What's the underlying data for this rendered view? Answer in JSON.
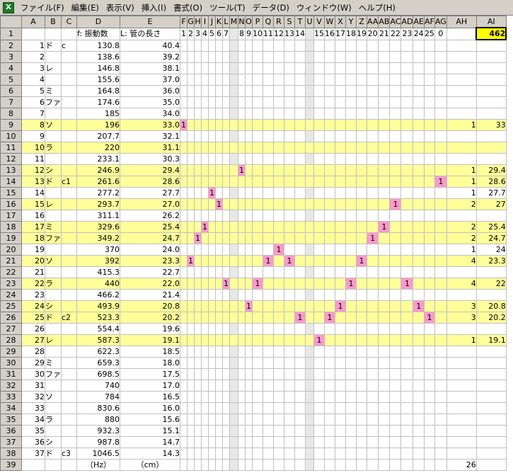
{
  "app": {
    "icon": "excel-icon"
  },
  "menu": [
    "ファイル(F)",
    "編集(E)",
    "表示(V)",
    "挿入(I)",
    "書式(O)",
    "ツール(T)",
    "データ(D)",
    "ウィンドウ(W)",
    "ヘルプ(H)"
  ],
  "colors": {
    "highlight": "#ffff99",
    "marker": "#ff99cc",
    "total": "#ffff00"
  },
  "sheet": {
    "columns": [
      "A",
      "B",
      "C",
      "D",
      "E",
      "F",
      "G",
      "H",
      "I",
      "J",
      "K",
      "L",
      "M",
      "N",
      "O",
      "P",
      "Q",
      "R",
      "S",
      "T",
      "U",
      "V",
      "W",
      "X",
      "Y",
      "Z",
      "AA",
      "AB",
      "AC",
      "AD",
      "AE",
      "AF",
      "AG",
      "AH",
      "AI"
    ],
    "header_row": {
      "D": "f: 振動数",
      "E": "L: 管の長さ",
      "nums": {
        "F": "1",
        "G": "2",
        "H": "3",
        "I": "4",
        "J": "5",
        "K": "6",
        "L": "7",
        "N": "8",
        "O": "9",
        "P": "10",
        "Q": "11",
        "R": "12",
        "S": "13",
        "T": "14",
        "V": "15",
        "W": "16",
        "X": "17",
        "Y": "18",
        "Z": "19",
        "AA": "20",
        "AB": "21",
        "AC": "22",
        "AD": "23",
        "AE": "24",
        "AF": "25",
        "AG": "0"
      },
      "AI": "462"
    },
    "rows": [
      {
        "n": "2",
        "A": "1",
        "B": "ド",
        "C": "c",
        "D": "130.8",
        "E": "40.4"
      },
      {
        "n": "3",
        "A": "2",
        "B": "",
        "C": "",
        "D": "138.6",
        "E": "39.2"
      },
      {
        "n": "4",
        "A": "3",
        "B": "レ",
        "C": "",
        "D": "146.8",
        "E": "38.1"
      },
      {
        "n": "5",
        "A": "4",
        "B": "",
        "C": "",
        "D": "155.6",
        "E": "37.0"
      },
      {
        "n": "6",
        "A": "5",
        "B": "ミ",
        "C": "",
        "D": "164.8",
        "E": "36.0"
      },
      {
        "n": "7",
        "A": "6",
        "B": "ファ",
        "C": "",
        "D": "174.6",
        "E": "35.0"
      },
      {
        "n": "8",
        "A": "7",
        "B": "",
        "C": "",
        "D": "185",
        "E": "34.0"
      },
      {
        "n": "9",
        "A": "8",
        "B": "ソ",
        "C": "",
        "D": "196",
        "E": "33.0",
        "hl": true,
        "marks": [
          "F"
        ],
        "AH": "1",
        "AI": "33"
      },
      {
        "n": "10",
        "A": "9",
        "B": "",
        "C": "",
        "D": "207.7",
        "E": "32.1"
      },
      {
        "n": "11",
        "A": "10",
        "B": "ラ",
        "C": "",
        "D": "220",
        "E": "31.1",
        "hl": true
      },
      {
        "n": "12",
        "A": "11",
        "B": "",
        "C": "",
        "D": "233.1",
        "E": "30.3"
      },
      {
        "n": "13",
        "A": "12",
        "B": "シ",
        "C": "",
        "D": "246.9",
        "E": "29.4",
        "hl": true,
        "marks": [
          "N"
        ],
        "AH": "1",
        "AI": "29.4"
      },
      {
        "n": "14",
        "A": "13",
        "B": "ド",
        "C": "c1",
        "D": "261.6",
        "E": "28.6",
        "hl": true,
        "marks": [
          "AG"
        ],
        "AH": "1",
        "AI": "28.6"
      },
      {
        "n": "15",
        "A": "14",
        "B": "",
        "C": "",
        "D": "277.2",
        "E": "27.7",
        "marks": [
          "J"
        ],
        "AH": "1",
        "AI": "27.7"
      },
      {
        "n": "16",
        "A": "15",
        "B": "レ",
        "C": "",
        "D": "293.7",
        "E": "27.0",
        "hl": true,
        "marks": [
          "K",
          "AC"
        ],
        "AH": "2",
        "AI": "27"
      },
      {
        "n": "17",
        "A": "16",
        "B": "",
        "C": "",
        "D": "311.1",
        "E": "26.2"
      },
      {
        "n": "18",
        "A": "17",
        "B": "ミ",
        "C": "",
        "D": "329.6",
        "E": "25.4",
        "hl": true,
        "marks": [
          "I",
          "AB"
        ],
        "AH": "2",
        "AI": "25.4"
      },
      {
        "n": "19",
        "A": "18",
        "B": "ファ",
        "C": "",
        "D": "349.2",
        "E": "24.7",
        "hl": true,
        "marks": [
          "H",
          "AA"
        ],
        "AH": "2",
        "AI": "24.7"
      },
      {
        "n": "20",
        "A": "19",
        "B": "",
        "C": "",
        "D": "370",
        "E": "24.0",
        "marks": [
          "R"
        ],
        "AH": "1",
        "AI": "24"
      },
      {
        "n": "21",
        "A": "20",
        "B": "ソ",
        "C": "",
        "D": "392",
        "E": "23.3",
        "hl": true,
        "marks": [
          "G",
          "Q",
          "S",
          "Z"
        ],
        "AH": "4",
        "AI": "23.3"
      },
      {
        "n": "22",
        "A": "21",
        "B": "",
        "C": "",
        "D": "415.3",
        "E": "22.7"
      },
      {
        "n": "23",
        "A": "22",
        "B": "ラ",
        "C": "",
        "D": "440",
        "E": "22.0",
        "hl": true,
        "marks": [
          "L",
          "P",
          "Y",
          "AD"
        ],
        "AH": "4",
        "AI": "22"
      },
      {
        "n": "24",
        "A": "23",
        "B": "",
        "C": "",
        "D": "466.2",
        "E": "21.4"
      },
      {
        "n": "25",
        "A": "24",
        "B": "シ",
        "C": "",
        "D": "493.9",
        "E": "20.8",
        "hl": true,
        "marks": [
          "O",
          "X",
          "AE"
        ],
        "AH": "3",
        "AI": "20.8"
      },
      {
        "n": "26",
        "A": "25",
        "B": "ド",
        "C": "c2",
        "D": "523.3",
        "E": "20.2",
        "hl": true,
        "marks": [
          "T",
          "W",
          "AF"
        ],
        "AH": "3",
        "AI": "20.2"
      },
      {
        "n": "27",
        "A": "26",
        "B": "",
        "C": "",
        "D": "554.4",
        "E": "19.6"
      },
      {
        "n": "28",
        "A": "27",
        "B": "レ",
        "C": "",
        "D": "587.3",
        "E": "19.1",
        "hl": true,
        "marks": [
          "V"
        ],
        "AH": "1",
        "AI": "19.1"
      },
      {
        "n": "29",
        "A": "28",
        "B": "",
        "C": "",
        "D": "622.3",
        "E": "18.5"
      },
      {
        "n": "30",
        "A": "29",
        "B": "ミ",
        "C": "",
        "D": "659.3",
        "E": "18.0"
      },
      {
        "n": "31",
        "A": "30",
        "B": "ファ",
        "C": "",
        "D": "698.5",
        "E": "17.5"
      },
      {
        "n": "32",
        "A": "31",
        "B": "",
        "C": "",
        "D": "740",
        "E": "17.0"
      },
      {
        "n": "33",
        "A": "32",
        "B": "ソ",
        "C": "",
        "D": "784",
        "E": "16.5"
      },
      {
        "n": "34",
        "A": "33",
        "B": "",
        "C": "",
        "D": "830.6",
        "E": "16.0"
      },
      {
        "n": "35",
        "A": "34",
        "B": "ラ",
        "C": "",
        "D": "880",
        "E": "15.6"
      },
      {
        "n": "36",
        "A": "35",
        "B": "",
        "C": "",
        "D": "932.3",
        "E": "15.1"
      },
      {
        "n": "37",
        "A": "36",
        "B": "シ",
        "C": "",
        "D": "987.8",
        "E": "14.7"
      },
      {
        "n": "38",
        "A": "37",
        "B": "ド",
        "C": "c3",
        "D": "1046.5",
        "E": "14.3"
      },
      {
        "n": "39",
        "A": "",
        "B": "",
        "C": "",
        "D": "（Hz）",
        "E": "（cm）",
        "AH": "26"
      }
    ]
  }
}
